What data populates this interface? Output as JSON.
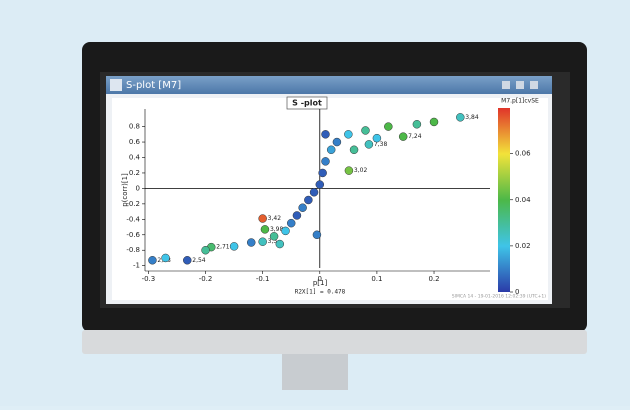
{
  "window": {
    "title": "S-plot [M7]",
    "footer": "R2X[1] = 0.478",
    "watermark": "SIMCA 14 - 19-01-2016 12:02:39 (UTC+1)"
  },
  "chart_data": {
    "type": "scatter",
    "title": "S -plot",
    "x_label": "p[1]",
    "y_label": "p(corr)[1]",
    "color_label": "M7.p[1]cvSE",
    "x": [
      -0.293,
      -0.232,
      -0.19,
      -0.1,
      -0.096,
      -0.1,
      0.051,
      0.146,
      0.086,
      0.246,
      -0.27,
      -0.2,
      -0.15,
      -0.12,
      -0.08,
      -0.06,
      -0.05,
      -0.04,
      -0.03,
      -0.02,
      -0.01,
      0,
      0.005,
      0.01,
      0.02,
      0.03,
      0.05,
      0.08,
      0.12,
      0.17,
      0.2,
      0.06,
      -0.005,
      0.01,
      -0.07,
      0.1
    ],
    "y": [
      -0.93,
      -0.93,
      -0.76,
      -0.39,
      -0.53,
      -0.69,
      0.23,
      0.67,
      0.57,
      0.92,
      -0.9,
      -0.8,
      -0.75,
      -0.7,
      -0.62,
      -0.55,
      -0.45,
      -0.35,
      -0.25,
      -0.15,
      -0.05,
      0.05,
      0.2,
      0.35,
      0.5,
      0.6,
      0.7,
      0.75,
      0.8,
      0.83,
      0.86,
      0.5,
      -0.6,
      0.7,
      -0.72,
      0.65
    ],
    "c": [
      0.01,
      0.005,
      0.035,
      0.075,
      0.04,
      0.025,
      0.045,
      0.04,
      0.025,
      0.025,
      0.02,
      0.03,
      0.02,
      0.01,
      0.03,
      0.02,
      0.01,
      0.005,
      0.01,
      0.005,
      0.005,
      0.005,
      0.005,
      0.01,
      0.015,
      0.01,
      0.02,
      0.03,
      0.04,
      0.03,
      0.04,
      0.03,
      0.01,
      0.005,
      0.025,
      0.02
    ],
    "labels": [
      "2,58",
      "2,54",
      "2,71",
      "3,42",
      "3,98",
      "3,3",
      "3,02",
      "7,24",
      "7,38",
      "3,84",
      null,
      null,
      null,
      null,
      null,
      null,
      null,
      null,
      null,
      null,
      null,
      null,
      null,
      null,
      null,
      null,
      null,
      null,
      null,
      null,
      null,
      null,
      null,
      null,
      null,
      null
    ],
    "xlim": [
      -0.306,
      0.298
    ],
    "ylim": [
      -1.03,
      0.95
    ],
    "xticks": [
      -0.3,
      -0.2,
      -0.1,
      0,
      0.1,
      0.2
    ],
    "yticks": [
      -1,
      -0.8,
      -0.6,
      -0.4,
      -0.2,
      0,
      0.2,
      0.4,
      0.6,
      0.8
    ],
    "clim": [
      0,
      0.0798
    ],
    "cticks": [
      0,
      0.02,
      0.04,
      0.06
    ],
    "colormap": [
      "#2b3aa8",
      "#3fc4e8",
      "#4cb848",
      "#f2e33a",
      "#e0342a"
    ]
  }
}
